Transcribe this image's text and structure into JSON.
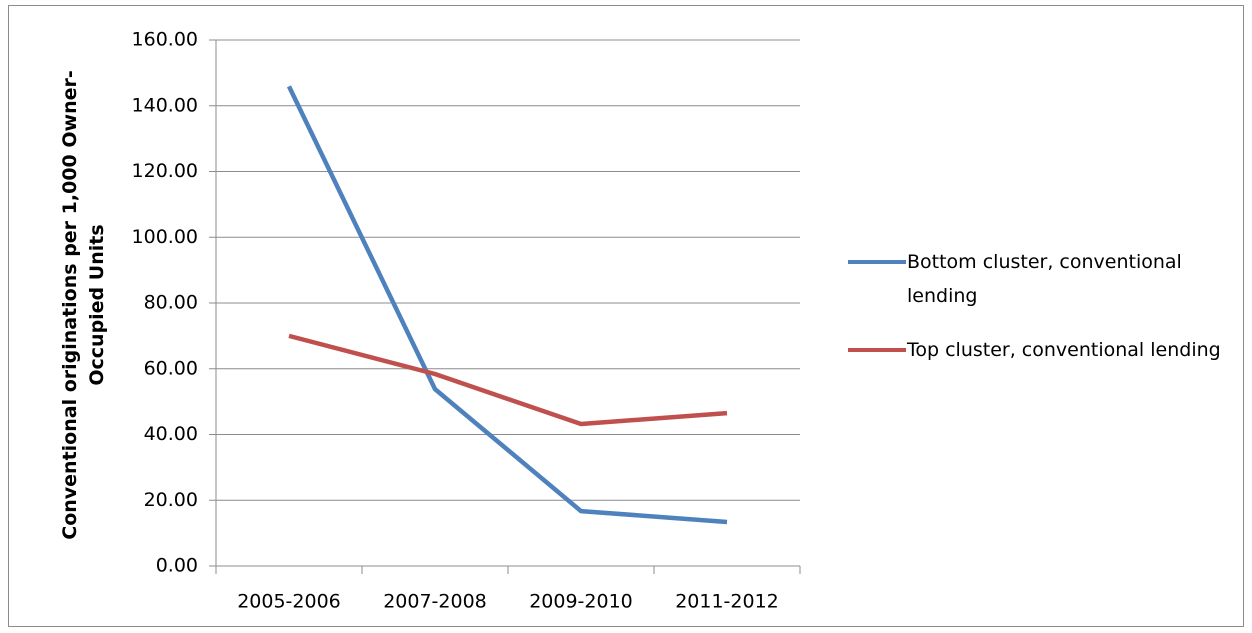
{
  "chart_data": {
    "type": "line",
    "ylabel": "Conventional originations per 1,000 Owner-Occupied Units",
    "categories": [
      "2005-2006",
      "2007-2008",
      "2009-2010",
      "2011-2012"
    ],
    "series": [
      {
        "name": "Bottom cluster, conventional lending",
        "color": "#4f81bd",
        "values": [
          145.9,
          53.8,
          16.7,
          13.4
        ]
      },
      {
        "name": "Top cluster, conventional lending",
        "color": "#c0504d",
        "values": [
          70.0,
          58.4,
          43.2,
          46.5
        ]
      }
    ],
    "ylim": [
      0,
      160
    ],
    "yticks": [
      {
        "value": 0,
        "label": "0.00"
      },
      {
        "value": 20,
        "label": "20.00"
      },
      {
        "value": 40,
        "label": "40.00"
      },
      {
        "value": 60,
        "label": "60.00"
      },
      {
        "value": 80,
        "label": "80.00"
      },
      {
        "value": 100,
        "label": "100.00"
      },
      {
        "value": 120,
        "label": "120.00"
      },
      {
        "value": 140,
        "label": "140.00"
      },
      {
        "value": 160,
        "label": "160.00"
      }
    ],
    "grid": true,
    "legend": "right"
  }
}
